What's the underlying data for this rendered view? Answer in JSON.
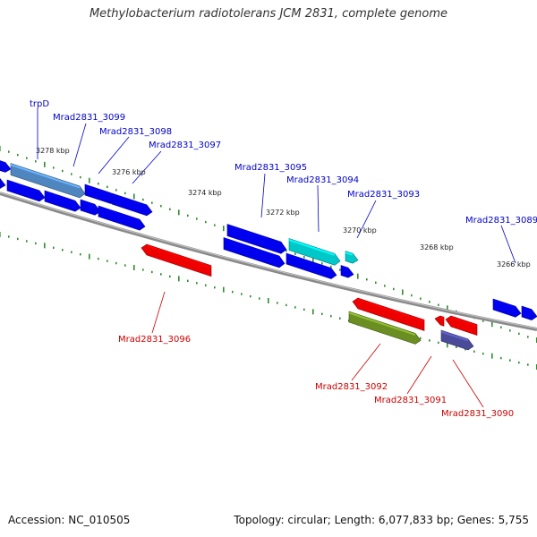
{
  "title": "Methylobacterium radiotolerans JCM 2831, complete genome",
  "footer": {
    "accession": "Accession: NC_010505",
    "topology": "Topology: circular; Length: 6,077,833 bp; Genes: 5,755"
  },
  "colors": {
    "forward_gene": "#0000ee",
    "reverse_gene": "#ee0000",
    "highlight_gene": "#4f86c0",
    "cyan_gene": "#00c8c8",
    "olive_gene": "#6b8e23",
    "slate_gene": "#4a4a9a",
    "backbone": "#8a8a8a",
    "tick": "#2e8b2e",
    "forward_label": "#0000cc",
    "reverse_label": "#cc0000"
  },
  "ticks": {
    "forward": [
      "3278 kbp",
      "3276 kbp",
      "3274 kbp",
      "3272 kbp",
      "3270 kbp",
      "3268 kbp",
      "3266 kbp"
    ]
  },
  "labels": {
    "forward": [
      "trpD",
      "Mrad2831_3099",
      "Mrad2831_3098",
      "Mrad2831_3097",
      "Mrad2831_3095",
      "Mrad2831_3094",
      "Mrad2831_3093",
      "Mrad2831_3089"
    ],
    "reverse": [
      "Mrad2831_3096",
      "Mrad2831_3092",
      "Mrad2831_3091",
      "Mrad2831_3090"
    ]
  }
}
